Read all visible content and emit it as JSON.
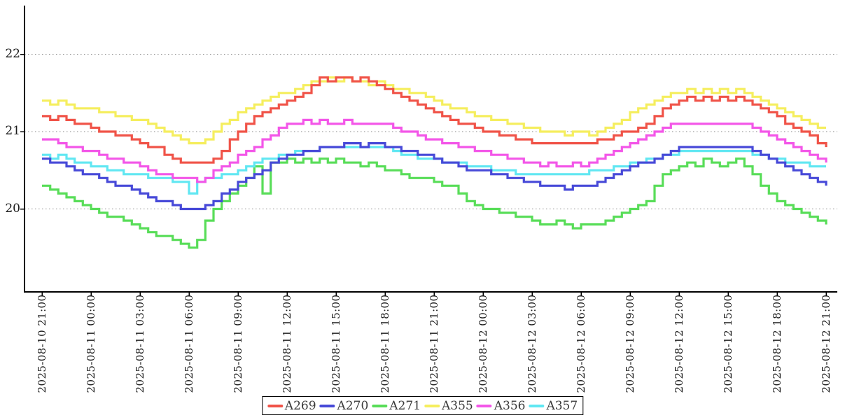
{
  "chart_data": {
    "type": "line",
    "title": "",
    "xlabel": "",
    "ylabel": "",
    "x_axis": {
      "start": "2025-08-10 21:00",
      "end": "2025-08-12 21:00",
      "tick_interval_hours": 3,
      "tick_labels": [
        "2025-08-10 21:00",
        "2025-08-11 00:00",
        "2025-08-11 03:00",
        "2025-08-11 06:00",
        "2025-08-11 09:00",
        "2025-08-11 12:00",
        "2025-08-11 15:00",
        "2025-08-11 18:00",
        "2025-08-11 21:00",
        "2025-08-12 00:00",
        "2025-08-12 03:00",
        "2025-08-12 06:00",
        "2025-08-12 09:00",
        "2025-08-12 12:00",
        "2025-08-12 15:00",
        "2025-08-12 18:00",
        "2025-08-12 21:00"
      ]
    },
    "y_axis": {
      "ticks": [
        20,
        21,
        22
      ],
      "min": 18.95,
      "max": 22.6,
      "grid": "dashed-horizontal"
    },
    "legend_position": "bottom-center",
    "sample_interval_hours": 0.5,
    "series": [
      {
        "name": "A269",
        "color": "#f05348",
        "values": [
          21.2,
          21.15,
          21.2,
          21.15,
          21.1,
          21.1,
          21.05,
          21.0,
          21.0,
          20.95,
          20.95,
          20.9,
          20.85,
          20.8,
          20.8,
          20.7,
          20.65,
          20.6,
          20.6,
          20.6,
          20.6,
          20.65,
          20.75,
          20.9,
          21.0,
          21.1,
          21.2,
          21.25,
          21.3,
          21.35,
          21.4,
          21.45,
          21.5,
          21.6,
          21.7,
          21.65,
          21.7,
          21.7,
          21.65,
          21.7,
          21.65,
          21.6,
          21.55,
          21.5,
          21.45,
          21.4,
          21.35,
          21.3,
          21.25,
          21.2,
          21.15,
          21.1,
          21.1,
          21.05,
          21.0,
          21.0,
          20.95,
          20.95,
          20.9,
          20.9,
          20.85,
          20.85,
          20.85,
          20.85,
          20.85,
          20.85,
          20.85,
          20.85,
          20.9,
          20.9,
          20.95,
          21.0,
          21.0,
          21.05,
          21.1,
          21.2,
          21.3,
          21.35,
          21.4,
          21.45,
          21.4,
          21.45,
          21.4,
          21.45,
          21.4,
          21.45,
          21.4,
          21.35,
          21.3,
          21.25,
          21.2,
          21.1,
          21.05,
          21.0,
          20.95,
          20.85,
          20.8
        ]
      },
      {
        "name": "A270",
        "color": "#4749d8",
        "values": [
          20.65,
          20.6,
          20.6,
          20.55,
          20.5,
          20.45,
          20.45,
          20.4,
          20.35,
          20.3,
          20.3,
          20.25,
          20.2,
          20.15,
          20.1,
          20.1,
          20.05,
          20.0,
          20.0,
          20.0,
          20.05,
          20.1,
          20.2,
          20.25,
          20.35,
          20.4,
          20.45,
          20.5,
          20.6,
          20.65,
          20.7,
          20.7,
          20.75,
          20.75,
          20.8,
          20.8,
          20.8,
          20.85,
          20.85,
          20.8,
          20.85,
          20.85,
          20.8,
          20.8,
          20.75,
          20.75,
          20.7,
          20.7,
          20.65,
          20.6,
          20.6,
          20.55,
          20.5,
          20.5,
          20.5,
          20.45,
          20.45,
          20.4,
          20.4,
          20.35,
          20.35,
          20.3,
          20.3,
          20.3,
          20.25,
          20.3,
          20.3,
          20.3,
          20.35,
          20.4,
          20.45,
          20.5,
          20.55,
          20.6,
          20.6,
          20.65,
          20.7,
          20.75,
          20.8,
          20.8,
          20.8,
          20.8,
          20.8,
          20.8,
          20.8,
          20.8,
          20.8,
          20.75,
          20.7,
          20.65,
          20.6,
          20.55,
          20.5,
          20.45,
          20.4,
          20.35,
          20.3
        ]
      },
      {
        "name": "A271",
        "color": "#58dd58",
        "values": [
          20.3,
          20.25,
          20.2,
          20.15,
          20.1,
          20.05,
          20.0,
          19.95,
          19.9,
          19.9,
          19.85,
          19.8,
          19.75,
          19.7,
          19.65,
          19.65,
          19.6,
          19.55,
          19.5,
          19.6,
          19.85,
          20.0,
          20.1,
          20.2,
          20.3,
          20.4,
          20.55,
          20.2,
          20.6,
          20.6,
          20.65,
          20.6,
          20.65,
          20.6,
          20.65,
          20.6,
          20.65,
          20.6,
          20.6,
          20.55,
          20.6,
          20.55,
          20.5,
          20.5,
          20.45,
          20.4,
          20.4,
          20.4,
          20.35,
          20.3,
          20.3,
          20.2,
          20.1,
          20.05,
          20.0,
          20.0,
          19.95,
          19.95,
          19.9,
          19.9,
          19.85,
          19.8,
          19.8,
          19.85,
          19.8,
          19.75,
          19.8,
          19.8,
          19.8,
          19.85,
          19.9,
          19.95,
          20.0,
          20.05,
          20.1,
          20.3,
          20.45,
          20.5,
          20.55,
          20.6,
          20.55,
          20.65,
          20.6,
          20.55,
          20.6,
          20.65,
          20.55,
          20.45,
          20.3,
          20.2,
          20.1,
          20.05,
          20.0,
          19.95,
          19.9,
          19.85,
          19.8
        ]
      },
      {
        "name": "A355",
        "color": "#f5ee5e",
        "values": [
          21.4,
          21.35,
          21.4,
          21.35,
          21.3,
          21.3,
          21.3,
          21.25,
          21.25,
          21.2,
          21.2,
          21.15,
          21.15,
          21.1,
          21.05,
          21.0,
          20.95,
          20.9,
          20.85,
          20.85,
          20.9,
          21.0,
          21.1,
          21.15,
          21.25,
          21.3,
          21.35,
          21.4,
          21.45,
          21.5,
          21.5,
          21.55,
          21.6,
          21.65,
          21.65,
          21.7,
          21.65,
          21.7,
          21.65,
          21.65,
          21.6,
          21.65,
          21.6,
          21.55,
          21.55,
          21.5,
          21.5,
          21.45,
          21.4,
          21.35,
          21.3,
          21.3,
          21.25,
          21.2,
          21.2,
          21.15,
          21.15,
          21.1,
          21.1,
          21.05,
          21.05,
          21.0,
          21.0,
          21.0,
          20.95,
          21.0,
          21.0,
          20.95,
          21.0,
          21.05,
          21.1,
          21.15,
          21.25,
          21.3,
          21.35,
          21.4,
          21.45,
          21.5,
          21.5,
          21.55,
          21.5,
          21.55,
          21.5,
          21.55,
          21.5,
          21.55,
          21.5,
          21.45,
          21.4,
          21.35,
          21.3,
          21.25,
          21.2,
          21.15,
          21.1,
          21.05,
          21.05
        ]
      },
      {
        "name": "A356",
        "color": "#f356e8",
        "values": [
          20.9,
          20.9,
          20.85,
          20.8,
          20.8,
          20.75,
          20.75,
          20.7,
          20.65,
          20.65,
          20.6,
          20.6,
          20.55,
          20.5,
          20.45,
          20.45,
          20.4,
          20.4,
          20.4,
          20.35,
          20.4,
          20.5,
          20.55,
          20.6,
          20.7,
          20.75,
          20.8,
          20.9,
          20.95,
          21.05,
          21.1,
          21.1,
          21.15,
          21.1,
          21.15,
          21.1,
          21.1,
          21.15,
          21.1,
          21.1,
          21.1,
          21.1,
          21.1,
          21.05,
          21.0,
          21.0,
          20.95,
          20.9,
          20.9,
          20.85,
          20.85,
          20.8,
          20.8,
          20.75,
          20.75,
          20.7,
          20.7,
          20.65,
          20.65,
          20.6,
          20.6,
          20.55,
          20.6,
          20.55,
          20.55,
          20.6,
          20.55,
          20.6,
          20.65,
          20.7,
          20.75,
          20.8,
          20.85,
          20.9,
          20.95,
          21.0,
          21.05,
          21.1,
          21.1,
          21.1,
          21.1,
          21.1,
          21.1,
          21.1,
          21.1,
          21.1,
          21.1,
          21.05,
          21.0,
          20.95,
          20.9,
          20.85,
          20.8,
          20.75,
          20.7,
          20.65,
          20.6
        ]
      },
      {
        "name": "A357",
        "color": "#60e7f2",
        "values": [
          20.7,
          20.65,
          20.7,
          20.65,
          20.6,
          20.6,
          20.55,
          20.55,
          20.5,
          20.5,
          20.45,
          20.45,
          20.45,
          20.4,
          20.4,
          20.4,
          20.35,
          20.35,
          20.2,
          20.35,
          20.4,
          20.4,
          20.45,
          20.45,
          20.5,
          20.55,
          20.6,
          20.65,
          20.65,
          20.7,
          20.7,
          20.75,
          20.75,
          20.75,
          20.8,
          20.8,
          20.8,
          20.8,
          20.8,
          20.8,
          20.8,
          20.8,
          20.8,
          20.75,
          20.7,
          20.7,
          20.65,
          20.65,
          20.65,
          20.6,
          20.6,
          20.6,
          20.55,
          20.55,
          20.55,
          20.5,
          20.5,
          20.5,
          20.45,
          20.45,
          20.45,
          20.45,
          20.45,
          20.45,
          20.45,
          20.45,
          20.45,
          20.5,
          20.5,
          20.5,
          20.55,
          20.55,
          20.6,
          20.6,
          20.65,
          20.65,
          20.7,
          20.7,
          20.75,
          20.75,
          20.75,
          20.75,
          20.75,
          20.75,
          20.75,
          20.75,
          20.75,
          20.7,
          20.7,
          20.65,
          20.65,
          20.6,
          20.6,
          20.6,
          20.55,
          20.55,
          20.55
        ]
      }
    ],
    "colors": {
      "axis": "#000000",
      "grid": "#8a8a8a",
      "tick_label": "#1c1c1c",
      "legend_text": "#3a3a3a",
      "background": "#ffffff"
    }
  }
}
